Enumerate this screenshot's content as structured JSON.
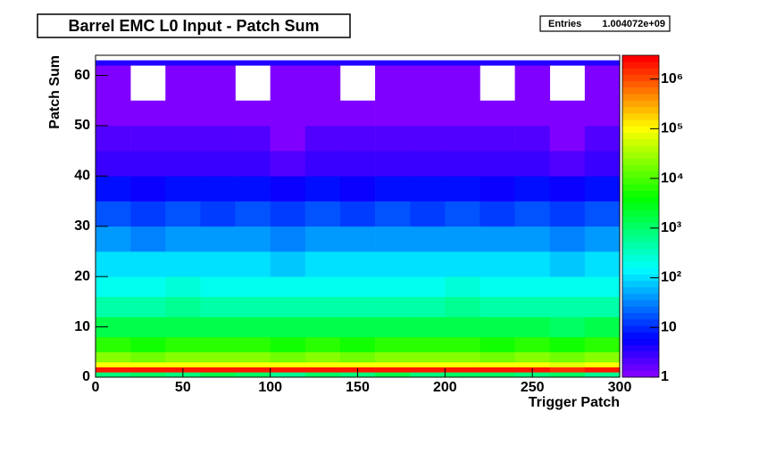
{
  "chart_data": {
    "type": "heatmap",
    "title": "Barrel EMC L0 Input - Patch Sum",
    "stats": {
      "label": "Entries",
      "value": "1.004072e+09"
    },
    "x_label": "Trigger Patch",
    "y_label": "Patch Sum",
    "xbins": [
      0,
      20,
      40,
      60,
      80,
      100,
      120,
      140,
      160,
      180,
      200,
      220,
      240,
      260,
      280,
      300
    ],
    "ybins": [
      0,
      1,
      2,
      3,
      5,
      8,
      12,
      16,
      20,
      25,
      30,
      35,
      40,
      45,
      50,
      55,
      62,
      63,
      64
    ],
    "values": [
      [
        800,
        1200,
        900,
        1500,
        1000,
        700,
        1100,
        900,
        1300,
        800,
        1000,
        1200,
        900,
        1100,
        700
      ],
      [
        2000000,
        1800000,
        2100000,
        1900000,
        2000000,
        1700000,
        2200000,
        1900000,
        2000000,
        1800000,
        2100000,
        1900000,
        2000000,
        1600000,
        2100000
      ],
      [
        100000,
        90000,
        110000,
        95000,
        100000,
        85000,
        105000,
        90000,
        100000,
        95000,
        110000,
        90000,
        100000,
        80000,
        100000
      ],
      [
        20000,
        18000,
        22000,
        19000,
        20000,
        17000,
        21000,
        18000,
        20000,
        19000,
        22000,
        18000,
        20000,
        16000,
        20000
      ],
      [
        6000,
        5500,
        6500,
        5800,
        6000,
        5000,
        6200,
        5500,
        6000,
        5800,
        6500,
        5500,
        6000,
        4800,
        6000
      ],
      [
        1500,
        1400,
        1700,
        1500,
        1600,
        1300,
        1600,
        1400,
        1500,
        1500,
        1700,
        1400,
        1500,
        1200,
        1500
      ],
      [
        500,
        450,
        550,
        480,
        520,
        420,
        520,
        450,
        500,
        480,
        550,
        450,
        500,
        400,
        500
      ],
      [
        200,
        180,
        220,
        190,
        200,
        170,
        210,
        180,
        200,
        190,
        220,
        180,
        200,
        160,
        200
      ],
      [
        100,
        90,
        110,
        95,
        100,
        85,
        105,
        90,
        100,
        95,
        110,
        90,
        100,
        80,
        100
      ],
      [
        40,
        35,
        45,
        38,
        40,
        34,
        42,
        36,
        40,
        38,
        45,
        36,
        40,
        32,
        40
      ],
      [
        15,
        13,
        17,
        14,
        15,
        12,
        16,
        13,
        15,
        14,
        17,
        13,
        15,
        12,
        15
      ],
      [
        6,
        5,
        7,
        6,
        6,
        5,
        6,
        5,
        6,
        6,
        7,
        5,
        6,
        5,
        6
      ],
      [
        3,
        3,
        3,
        3,
        3,
        2,
        3,
        3,
        3,
        3,
        3,
        3,
        3,
        2,
        3
      ],
      [
        2,
        2,
        2,
        2,
        2,
        1,
        2,
        2,
        2,
        2,
        2,
        2,
        2,
        1,
        2
      ],
      [
        1,
        1,
        1,
        1,
        1,
        1,
        1,
        1,
        1,
        1,
        1,
        1,
        1,
        1,
        1
      ],
      [
        1,
        0,
        1,
        1,
        0,
        1,
        1,
        0,
        1,
        1,
        1,
        0,
        1,
        0,
        1
      ],
      [
        4,
        4,
        4,
        4,
        4,
        4,
        4,
        4,
        4,
        4,
        4,
        4,
        4,
        4,
        4
      ],
      [
        0,
        0,
        0,
        0,
        0,
        0,
        0,
        0,
        0,
        0,
        0,
        0,
        0,
        0,
        0
      ]
    ],
    "colormap": "rainbow",
    "zscale": "log",
    "xlim": [
      0,
      300
    ],
    "xticks": [
      0,
      50,
      100,
      150,
      200,
      250,
      300
    ],
    "ylim": [
      0,
      64
    ],
    "yticks": [
      0,
      10,
      20,
      30,
      40,
      50,
      60
    ],
    "zlim": [
      1,
      3000000
    ],
    "zticks": [
      1,
      10,
      {
        "value": 100,
        "label": "10²"
      },
      {
        "value": 1000,
        "label": "10³"
      },
      {
        "value": 10000,
        "label": "10⁴"
      },
      {
        "value": 100000,
        "label": "10⁵"
      },
      {
        "value": 1000000,
        "label": "10⁶"
      }
    ]
  }
}
